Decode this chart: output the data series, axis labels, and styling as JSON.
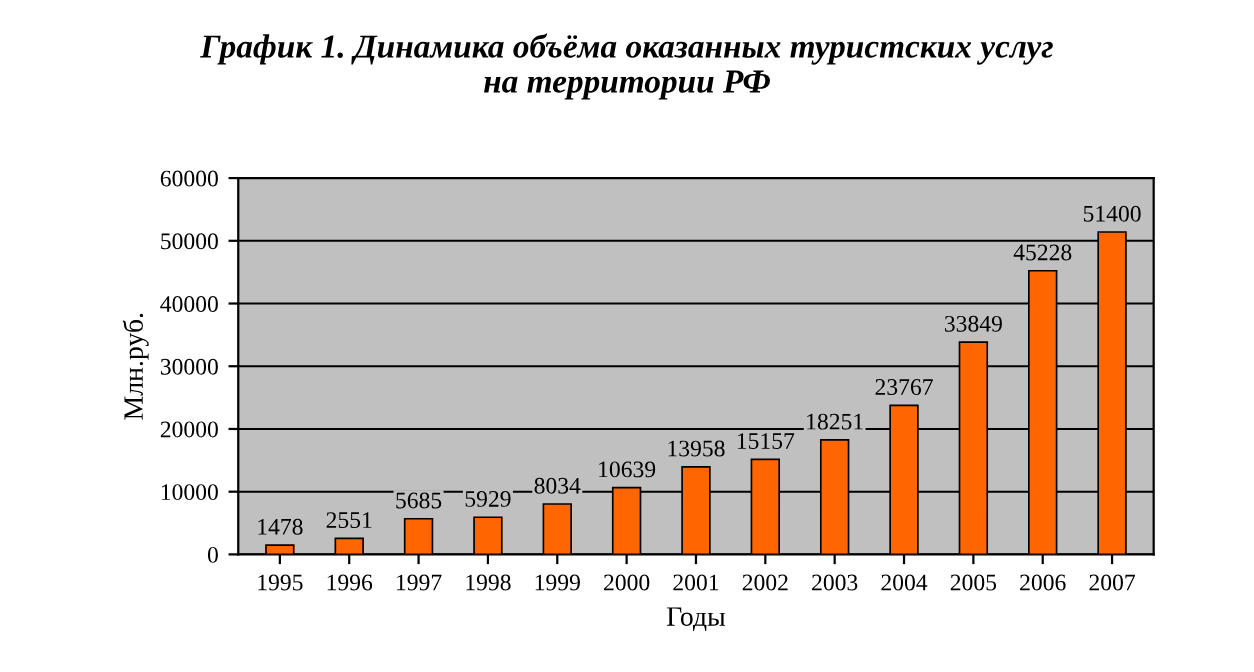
{
  "chart_data": {
    "type": "bar",
    "title": "График 1. Динамика объёма оказанных туристских услуг\nна территории РФ",
    "categories": [
      "1995",
      "1996",
      "1997",
      "1998",
      "1999",
      "2000",
      "2001",
      "2002",
      "2003",
      "2004",
      "2005",
      "2006",
      "2007"
    ],
    "values": [
      1478,
      2551,
      5685,
      5929,
      8034,
      10639,
      13958,
      15157,
      18251,
      23767,
      33849,
      45228,
      51400
    ],
    "color": "#ff6600",
    "xlabel": "Годы",
    "ylabel": "Млн.руб.",
    "ylim": [
      0,
      60000
    ],
    "yticks": [
      0,
      10000,
      20000,
      30000,
      40000,
      50000,
      60000
    ],
    "grid": "y",
    "data_labels": true
  }
}
